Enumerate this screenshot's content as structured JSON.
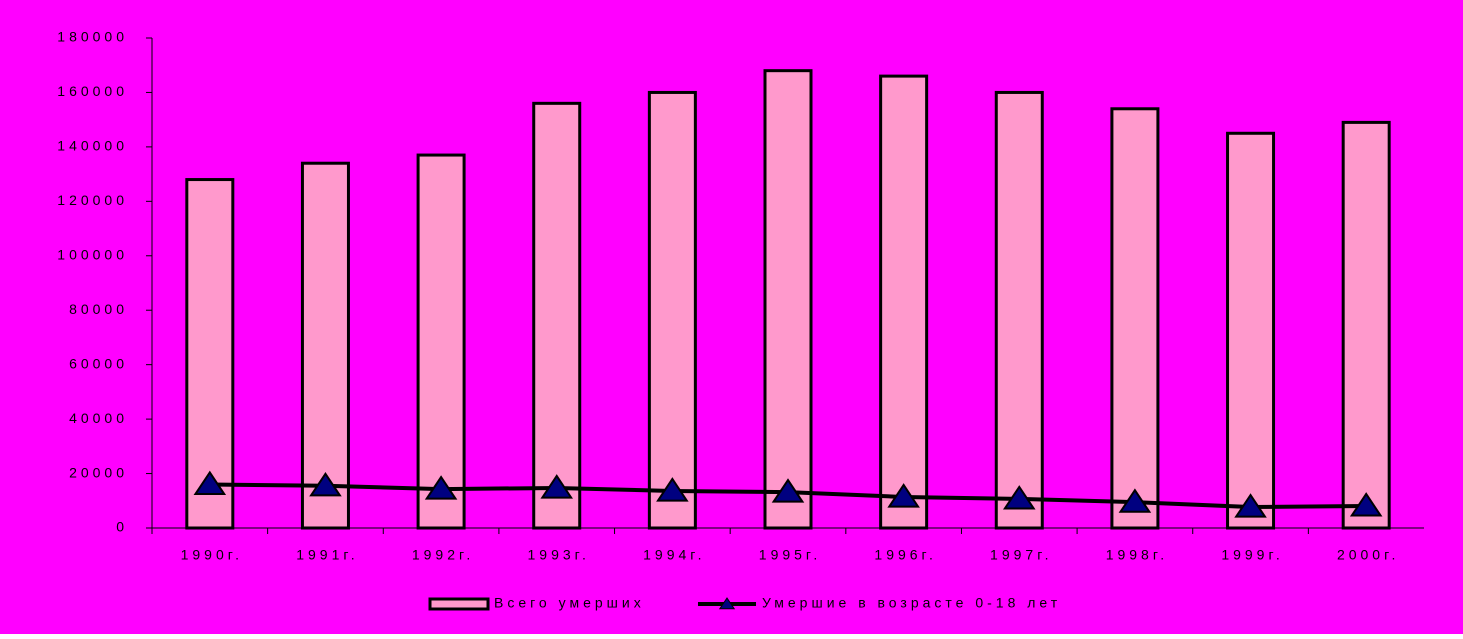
{
  "chart_data": {
    "type": "bar",
    "categories": [
      "1990г.",
      "1991г.",
      "1992г.",
      "1993г.",
      "1994г.",
      "1995г.",
      "1996г.",
      "1997г.",
      "1998г.",
      "1999г.",
      "2000г."
    ],
    "series": [
      {
        "name": "Всего умерших",
        "type": "bar",
        "color": "#ff99cc",
        "values": [
          128000,
          134000,
          137000,
          156000,
          160000,
          168000,
          166000,
          160000,
          154000,
          145000,
          149000
        ]
      },
      {
        "name": "Умершие в возрасте 0-18 лет",
        "type": "line",
        "color": "#000000",
        "marker_color": "#000080",
        "values": [
          16000,
          15500,
          14300,
          14700,
          13600,
          13200,
          11400,
          10700,
          9500,
          7700,
          8100
        ]
      }
    ],
    "ylim": [
      0,
      180000
    ],
    "yticks": [
      0,
      20000,
      40000,
      60000,
      80000,
      100000,
      120000,
      140000,
      160000,
      180000
    ],
    "background": "#ff00ff",
    "legend": "bottom"
  }
}
